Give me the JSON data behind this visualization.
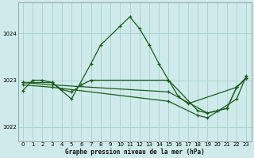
{
  "background_color": "#ceeaea",
  "grid_color": "#afd4d4",
  "line_color": "#1a5c1a",
  "ylim": [
    1021.7,
    1024.65
  ],
  "yticks": [
    1022,
    1023,
    1024
  ],
  "xlim": [
    -0.5,
    23.5
  ],
  "xticks": [
    0,
    1,
    2,
    3,
    4,
    5,
    6,
    7,
    8,
    9,
    10,
    11,
    12,
    13,
    14,
    15,
    16,
    17,
    18,
    19,
    20,
    21,
    22,
    23
  ],
  "xlabel": "Graphe pression niveau de la mer (hPa)",
  "series": [
    {
      "x": [
        0,
        1,
        2,
        3,
        5,
        7,
        8,
        10,
        11,
        12,
        13,
        14,
        15,
        16,
        17,
        22,
        23
      ],
      "y": [
        1022.78,
        1023.0,
        1023.0,
        1022.95,
        1022.6,
        1023.35,
        1023.75,
        1024.15,
        1024.35,
        1024.1,
        1023.75,
        1023.35,
        1023.0,
        1022.65,
        1022.5,
        1022.85,
        1023.05
      ]
    },
    {
      "x": [
        0,
        3,
        4,
        5,
        6,
        7,
        15,
        18,
        19,
        20,
        21,
        22,
        23
      ],
      "y": [
        1022.95,
        1022.95,
        1022.8,
        1022.75,
        1022.9,
        1023.0,
        1023.0,
        1022.35,
        1022.3,
        1022.35,
        1022.4,
        1022.85,
        1023.05
      ]
    },
    {
      "x": [
        0,
        3,
        15,
        19,
        20,
        21,
        22,
        23
      ],
      "y": [
        1022.95,
        1022.9,
        1022.75,
        1022.3,
        1022.35,
        1022.4,
        1022.85,
        1023.05
      ]
    },
    {
      "x": [
        0,
        3,
        15,
        18,
        19,
        22,
        23
      ],
      "y": [
        1022.9,
        1022.85,
        1022.55,
        1022.25,
        1022.2,
        1022.6,
        1023.1
      ]
    }
  ]
}
